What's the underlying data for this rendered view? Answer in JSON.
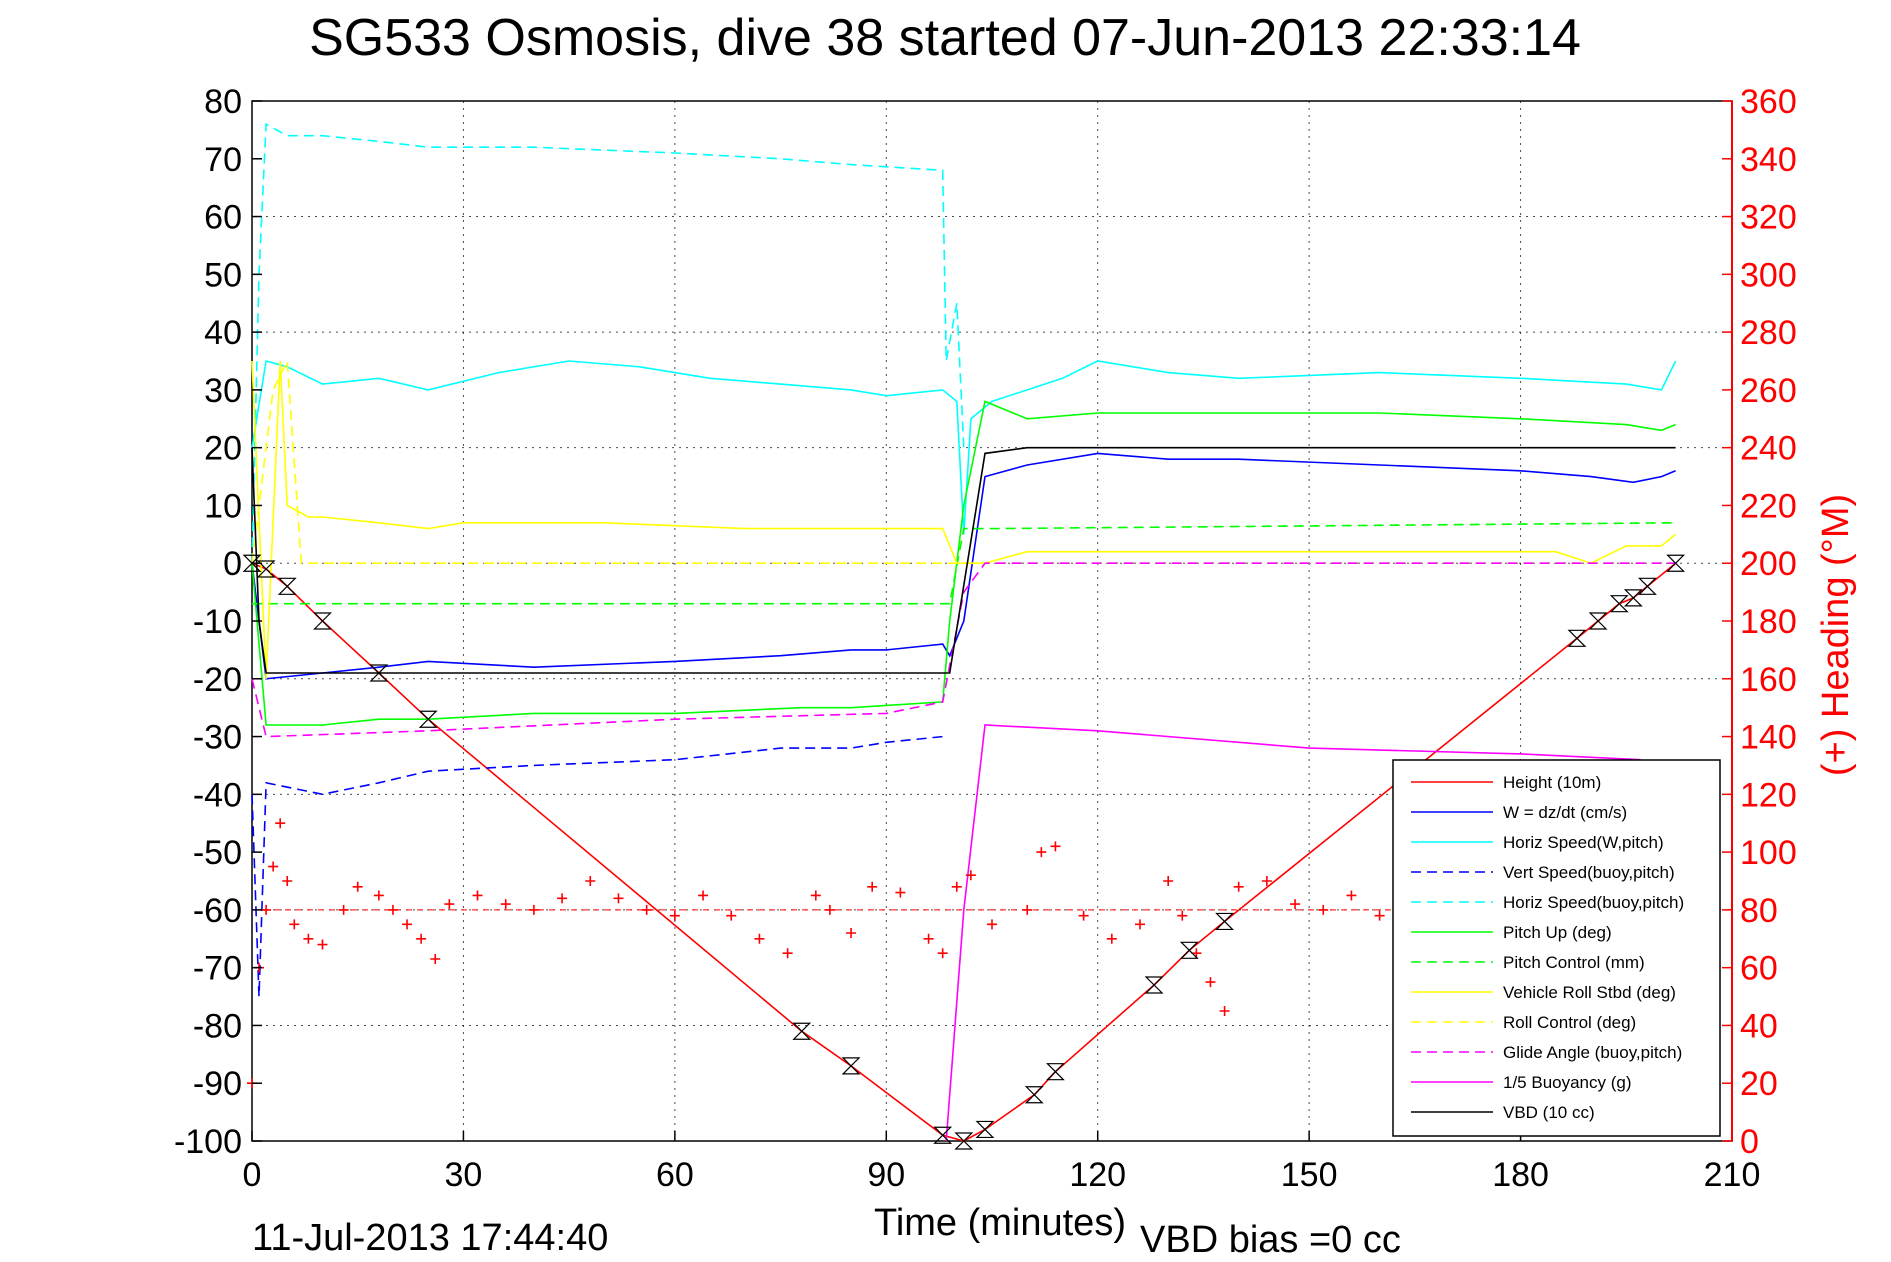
{
  "chart_data": {
    "type": "line",
    "title": "SG533 Osmosis, dive 38 started 07-Jun-2013 22:33:14",
    "xlabel": "Time (minutes)",
    "ylabel_right": "(+) Heading (°M)",
    "footer_left": "11-Jul-2013 17:44:40",
    "footer_right": "VBD bias =0 cc",
    "xlim": [
      0,
      210
    ],
    "ylim": [
      -100,
      80
    ],
    "ylim_right": [
      0,
      360
    ],
    "xticks": [
      "0",
      "30",
      "60",
      "90",
      "120",
      "150",
      "180",
      "210"
    ],
    "yticks": [
      "80",
      "70",
      "60",
      "50",
      "40",
      "30",
      "20",
      "10",
      "0",
      "-10",
      "-20",
      "-30",
      "-40",
      "-50",
      "-60",
      "-70",
      "-80",
      "-90",
      "-100"
    ],
    "yticks_right": [
      "360",
      "340",
      "320",
      "300",
      "280",
      "260",
      "240",
      "220",
      "200",
      "180",
      "160",
      "140",
      "120",
      "100",
      "80",
      "60",
      "40",
      "20",
      "0"
    ],
    "grid": true,
    "legend_position": "lower-right",
    "series": [
      {
        "name": "Height (10m)",
        "color": "#ff0000",
        "style": "solid",
        "axis": "left",
        "x": [
          0,
          2,
          5,
          10,
          18,
          25,
          78,
          85,
          98,
          101,
          104,
          111,
          114,
          128,
          133,
          138,
          188,
          191,
          194,
          196,
          198,
          202
        ],
        "y": [
          0,
          -1,
          -4,
          -10,
          -19,
          -27,
          -81,
          -87,
          -99,
          -100,
          -98,
          -92,
          -88,
          -73,
          -67,
          -62,
          -13,
          -10,
          -7,
          -6,
          -4,
          0
        ]
      },
      {
        "name": "W = dz/dt (cm/s)",
        "color": "#0000ff",
        "style": "solid",
        "axis": "left",
        "x": [
          0,
          1,
          2,
          10,
          18,
          25,
          40,
          60,
          75,
          85,
          90,
          98,
          99,
          101,
          104,
          110,
          120,
          130,
          140,
          160,
          180,
          190,
          196,
          200,
          202
        ],
        "y": [
          0,
          -10,
          -20,
          -19,
          -18,
          -17,
          -18,
          -17,
          -16,
          -15,
          -15,
          -14,
          -16,
          -10,
          15,
          17,
          19,
          18,
          18,
          17,
          16,
          15,
          14,
          15,
          16
        ]
      },
      {
        "name": "Horiz Speed(W,pitch)",
        "color": "#00ffff",
        "style": "solid",
        "axis": "left",
        "x": [
          0,
          2,
          5,
          10,
          18,
          25,
          35,
          45,
          55,
          65,
          75,
          85,
          90,
          98,
          100,
          101,
          102,
          105,
          115,
          120,
          130,
          140,
          160,
          180,
          195,
          200,
          202
        ],
        "y": [
          20,
          35,
          34,
          31,
          32,
          30,
          33,
          35,
          34,
          32,
          31,
          30,
          29,
          30,
          28,
          5,
          25,
          28,
          32,
          35,
          33,
          32,
          33,
          32,
          31,
          30,
          35
        ]
      },
      {
        "name": "Vert Speed(buoy,pitch)",
        "color": "#0000ff",
        "style": "dashed",
        "axis": "left",
        "x": [
          0,
          1,
          2,
          10,
          18,
          25,
          40,
          60,
          75,
          85,
          90,
          98
        ],
        "y": [
          -40,
          -75,
          -38,
          -40,
          -38,
          -36,
          -35,
          -34,
          -32,
          -32,
          -31,
          -30
        ]
      },
      {
        "name": "Horiz Speed(buoy,pitch)",
        "color": "#00ffff",
        "style": "dashed",
        "axis": "left",
        "x": [
          0,
          1,
          2,
          5,
          10,
          18,
          25,
          40,
          60,
          75,
          85,
          98,
          98.5,
          100,
          101
        ],
        "y": [
          0,
          50,
          76,
          74,
          74,
          73,
          72,
          72,
          71,
          70,
          69,
          68,
          35,
          45,
          20
        ]
      },
      {
        "name": "Pitch Up (deg)",
        "color": "#00ff00",
        "style": "solid",
        "axis": "left",
        "x": [
          0,
          2,
          10,
          18,
          25,
          40,
          60,
          78,
          85,
          98,
          99,
          101,
          104,
          110,
          120,
          140,
          160,
          180,
          195,
          200,
          202
        ],
        "y": [
          0,
          -28,
          -28,
          -27,
          -27,
          -26,
          -26,
          -25,
          -25,
          -24,
          -10,
          10,
          28,
          25,
          26,
          26,
          26,
          25,
          24,
          23,
          24
        ]
      },
      {
        "name": "Pitch Control (mm)",
        "color": "#00ff00",
        "style": "dashed",
        "axis": "left",
        "x": [
          0,
          2,
          25,
          60,
          98,
          99,
          101,
          105,
          202
        ],
        "y": [
          -7,
          -7,
          -7,
          -7,
          -7,
          -7,
          6,
          6,
          7
        ]
      },
      {
        "name": "Vehicle Roll Stbd (deg)",
        "color": "#ffff00",
        "style": "solid",
        "axis": "left",
        "x": [
          0,
          2,
          4,
          5,
          8,
          10,
          18,
          25,
          30,
          50,
          70,
          78,
          85,
          90,
          98,
          100,
          104,
          110,
          120,
          140,
          160,
          185,
          190,
          195,
          200,
          202
        ],
        "y": [
          35,
          -20,
          35,
          10,
          8,
          8,
          7,
          6,
          7,
          7,
          6,
          6,
          6,
          6,
          6,
          0,
          0,
          2,
          2,
          2,
          2,
          2,
          0,
          3,
          3,
          5
        ]
      },
      {
        "name": "Roll Control (deg)",
        "color": "#ffff00",
        "style": "dashed",
        "axis": "left",
        "x": [
          0,
          3,
          5,
          7,
          202
        ],
        "y": [
          0,
          30,
          35,
          0,
          0
        ]
      },
      {
        "name": "Glide Angle (buoy,pitch)",
        "color": "#ff00ff",
        "style": "dashed",
        "axis": "left",
        "x": [
          0,
          2,
          25,
          60,
          90,
          98,
          101,
          104,
          202
        ],
        "y": [
          -20,
          -30,
          -29,
          -27,
          -26,
          -24,
          -5,
          0,
          0
        ]
      },
      {
        "name": "1/5 Buoyancy (g)",
        "color": "#ff00ff",
        "style": "solid",
        "axis": "left",
        "x": [
          98.5,
          101,
          104,
          120,
          150,
          180,
          197
        ],
        "y": [
          -100,
          -60,
          -28,
          -29,
          -32,
          -33,
          -34
        ]
      },
      {
        "name": "VBD (10 cc)",
        "color": "#000000",
        "style": "solid",
        "axis": "left",
        "x": [
          0,
          1,
          2,
          98,
          99,
          104,
          110,
          202
        ],
        "y": [
          20,
          -10,
          -19,
          -19,
          -19,
          19,
          20,
          20
        ]
      }
    ],
    "heading": {
      "axis": "right",
      "color": "#ff0000",
      "marker": "+",
      "target": 80,
      "x": [
        0,
        1,
        2,
        3,
        4,
        5,
        6,
        8,
        10,
        13,
        15,
        18,
        20,
        22,
        24,
        26,
        28,
        32,
        36,
        40,
        44,
        48,
        52,
        56,
        60,
        64,
        68,
        72,
        76,
        80,
        82,
        85,
        88,
        92,
        96,
        98,
        100,
        102,
        105,
        110,
        112,
        114,
        118,
        122,
        126,
        130,
        132,
        134,
        136,
        138,
        140,
        144,
        148,
        152,
        156,
        160,
        165
      ],
      "y": [
        20,
        60,
        80,
        95,
        110,
        90,
        75,
        70,
        68,
        80,
        88,
        85,
        80,
        75,
        70,
        63,
        82,
        85,
        82,
        80,
        84,
        90,
        84,
        80,
        78,
        85,
        78,
        70,
        65,
        85,
        80,
        72,
        88,
        86,
        70,
        65,
        88,
        92,
        75,
        80,
        100,
        102,
        78,
        70,
        75,
        90,
        78,
        65,
        55,
        45,
        88,
        90,
        82,
        80,
        85,
        78,
        76
      ]
    }
  }
}
